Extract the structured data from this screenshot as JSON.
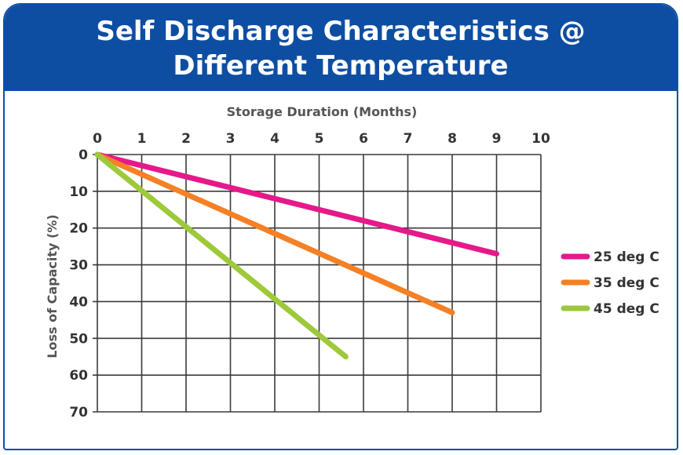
{
  "header": {
    "title_line1": "Self Discharge Characteristics @",
    "title_line2": "Different Temperature",
    "background": "#0e4ea2"
  },
  "chart_data": {
    "type": "line",
    "title": "Self Discharge Characteristics @ Different Temperature",
    "xlabel": "Storage Duration (Months)",
    "ylabel": "Loss of Capacity (%)",
    "xlim": [
      0,
      10
    ],
    "ylim": [
      0,
      70
    ],
    "y_inverted": true,
    "x_ticks": [
      0,
      1,
      2,
      3,
      4,
      5,
      6,
      7,
      8,
      9,
      10
    ],
    "y_ticks": [
      0,
      10,
      20,
      30,
      40,
      50,
      60,
      70
    ],
    "grid": true,
    "legend_position": "right",
    "series": [
      {
        "name": "25 deg C",
        "color": "#e5198a",
        "x": [
          0,
          9
        ],
        "y": [
          0,
          27
        ]
      },
      {
        "name": "35 deg C",
        "color": "#f58025",
        "x": [
          0,
          8
        ],
        "y": [
          0,
          43
        ]
      },
      {
        "name": "45 deg C",
        "color": "#9dc93b",
        "x": [
          0,
          5.6
        ],
        "y": [
          0,
          55
        ]
      }
    ]
  }
}
